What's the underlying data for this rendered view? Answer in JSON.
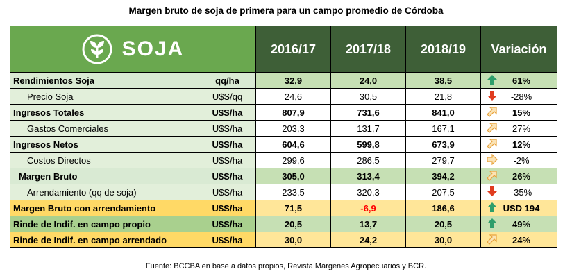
{
  "title": "Margen bruto de soja de primera para un campo promedio de Córdoba",
  "logo_text": "SOJA",
  "colors": {
    "header": "#3e5f37",
    "logo_bg": "#6aa84f",
    "up_green": "#2e9e6b",
    "down_red": "#e03c1f",
    "diag_orange": "#e8a33d"
  },
  "headers": {
    "y1": "2016/17",
    "y2": "2017/18",
    "y3": "2018/19",
    "variation": "Variación"
  },
  "rows": [
    {
      "label": "Rendimientos Soja",
      "unit": "qq/ha",
      "v1": "32,9",
      "v2": "24,0",
      "v3": "38,5",
      "icon": "arrow-up-icon",
      "var": "61%"
    },
    {
      "label": "Precio Soja",
      "unit": "U$S/qq",
      "v1": "24,6",
      "v2": "30,5",
      "v3": "21,8",
      "icon": "arrow-down-icon",
      "var": "-28%"
    },
    {
      "label": "Ingresos Totales",
      "unit": "U$S/ha",
      "v1": "807,9",
      "v2": "731,6",
      "v3": "841,0",
      "icon": "arrow-diagonal-up-icon",
      "var": "15%"
    },
    {
      "label": "Gastos Comerciales",
      "unit": "U$S/ha",
      "v1": "203,3",
      "v2": "131,7",
      "v3": "167,1",
      "icon": "arrow-diagonal-up-icon",
      "var": "27%"
    },
    {
      "label": "Ingresos Netos",
      "unit": "U$S/ha",
      "v1": "604,6",
      "v2": "599,8",
      "v3": "673,9",
      "icon": "arrow-diagonal-up-icon",
      "var": "12%"
    },
    {
      "label": "Costos Directos",
      "unit": "U$S/ha",
      "v1": "299,6",
      "v2": "286,5",
      "v3": "279,7",
      "icon": "arrow-right-icon",
      "var": "-2%"
    },
    {
      "label": "Margen Bruto",
      "unit": "U$S/ha",
      "v1": "305,0",
      "v2": "313,4",
      "v3": "394,2",
      "icon": "arrow-diagonal-up-icon",
      "var": "26%"
    },
    {
      "label": "Arrendamiento (qq de soja)",
      "unit": "U$S/ha",
      "v1": "233,5",
      "v2": "320,3",
      "v3": "207,5",
      "icon": "arrow-down-icon",
      "var": "-35%"
    },
    {
      "label": "Margen Bruto con arrendamiento",
      "unit": "U$S/ha",
      "v1": "71,5",
      "v2": "-6,9",
      "v3": "186,6",
      "icon": "arrow-up-icon",
      "var": "USD 194"
    },
    {
      "label": "Rinde de Indif. en campo propio",
      "unit": "U$S/ha",
      "v1": "20,5",
      "v2": "13,7",
      "v3": "20,5",
      "icon": "arrow-up-icon",
      "var": "49%"
    },
    {
      "label": "Rinde de Indif. en campo arrendado",
      "unit": "U$S/ha",
      "v1": "30,0",
      "v2": "24,2",
      "v3": "30,0",
      "icon": "arrow-diagonal-up-icon",
      "var": "24%"
    }
  ],
  "footer": "Fuente: BCCBA en base a datos propios, Revista Márgenes Agropecuarios y BCR."
}
